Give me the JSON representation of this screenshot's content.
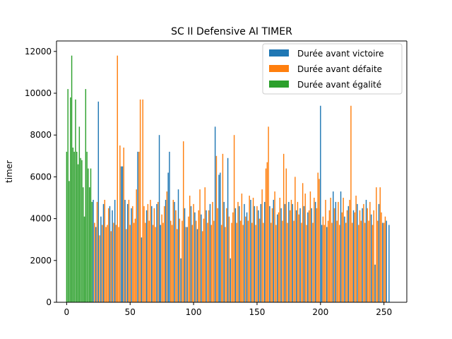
{
  "chart_data": {
    "type": "bar",
    "title": "SC II Defensive AI TIMER",
    "xlabel": "",
    "ylabel": "timer",
    "xlim": [
      -8,
      268
    ],
    "ylim": [
      0,
      12500
    ],
    "xticks": [
      0,
      50,
      100,
      150,
      200,
      250
    ],
    "yticks": [
      0,
      2000,
      4000,
      6000,
      8000,
      10000,
      12000
    ],
    "grid": false,
    "legend_position": "top-right",
    "series": [
      {
        "name": "Durée avant victoire",
        "color": "#1f77b4",
        "points": [
          {
            "x": 21,
            "y": 4900
          },
          {
            "x": 23,
            "y": 3600
          },
          {
            "x": 25,
            "y": 9600
          },
          {
            "x": 27,
            "y": 4100
          },
          {
            "x": 29,
            "y": 4700
          },
          {
            "x": 34,
            "y": 4600
          },
          {
            "x": 36,
            "y": 4400
          },
          {
            "x": 38,
            "y": 4900
          },
          {
            "x": 43,
            "y": 6500
          },
          {
            "x": 44,
            "y": 6500
          },
          {
            "x": 46,
            "y": 4900
          },
          {
            "x": 48,
            "y": 4700
          },
          {
            "x": 51,
            "y": 4500
          },
          {
            "x": 56,
            "y": 7200
          },
          {
            "x": 59,
            "y": 3100
          },
          {
            "x": 63,
            "y": 4400
          },
          {
            "x": 67,
            "y": 4600
          },
          {
            "x": 71,
            "y": 4700
          },
          {
            "x": 73,
            "y": 8000
          },
          {
            "x": 74,
            "y": 3700
          },
          {
            "x": 78,
            "y": 4900
          },
          {
            "x": 80,
            "y": 6200
          },
          {
            "x": 81,
            "y": 7200
          },
          {
            "x": 85,
            "y": 4800
          },
          {
            "x": 88,
            "y": 5400
          },
          {
            "x": 90,
            "y": 2100
          },
          {
            "x": 93,
            "y": 4500
          },
          {
            "x": 95,
            "y": 3600
          },
          {
            "x": 98,
            "y": 4600
          },
          {
            "x": 101,
            "y": 4300
          },
          {
            "x": 103,
            "y": 3500
          },
          {
            "x": 106,
            "y": 4200
          },
          {
            "x": 110,
            "y": 4400
          },
          {
            "x": 113,
            "y": 4700
          },
          {
            "x": 117,
            "y": 8400
          },
          {
            "x": 120,
            "y": 6100
          },
          {
            "x": 121,
            "y": 6200
          },
          {
            "x": 124,
            "y": 4800
          },
          {
            "x": 127,
            "y": 6900
          },
          {
            "x": 129,
            "y": 2100
          },
          {
            "x": 133,
            "y": 4500
          },
          {
            "x": 136,
            "y": 4600
          },
          {
            "x": 140,
            "y": 4700
          },
          {
            "x": 142,
            "y": 4300
          },
          {
            "x": 145,
            "y": 4900
          },
          {
            "x": 148,
            "y": 4600
          },
          {
            "x": 151,
            "y": 4400
          },
          {
            "x": 153,
            "y": 4700
          },
          {
            "x": 156,
            "y": 4800
          },
          {
            "x": 160,
            "y": 4600
          },
          {
            "x": 163,
            "y": 4900
          },
          {
            "x": 166,
            "y": 4200
          },
          {
            "x": 169,
            "y": 4500
          },
          {
            "x": 172,
            "y": 4700
          },
          {
            "x": 175,
            "y": 4800
          },
          {
            "x": 178,
            "y": 4700
          },
          {
            "x": 181,
            "y": 4400
          },
          {
            "x": 184,
            "y": 4500
          },
          {
            "x": 187,
            "y": 4600
          },
          {
            "x": 190,
            "y": 4300
          },
          {
            "x": 193,
            "y": 4500
          },
          {
            "x": 196,
            "y": 4800
          },
          {
            "x": 200,
            "y": 9400
          },
          {
            "x": 201,
            "y": 3700
          },
          {
            "x": 205,
            "y": 3600
          },
          {
            "x": 210,
            "y": 5300
          },
          {
            "x": 212,
            "y": 4800
          },
          {
            "x": 216,
            "y": 5300
          },
          {
            "x": 219,
            "y": 4100
          },
          {
            "x": 222,
            "y": 4600
          },
          {
            "x": 226,
            "y": 4400
          },
          {
            "x": 229,
            "y": 4700
          },
          {
            "x": 233,
            "y": 4500
          },
          {
            "x": 236,
            "y": 4900
          },
          {
            "x": 240,
            "y": 4200
          },
          {
            "x": 243,
            "y": 1800
          },
          {
            "x": 246,
            "y": 4700
          },
          {
            "x": 249,
            "y": 3800
          },
          {
            "x": 252,
            "y": 3900
          },
          {
            "x": 254,
            "y": 3700
          }
        ]
      },
      {
        "name": "Durée avant défaite",
        "color": "#ff7f0e",
        "points": [
          {
            "x": 22,
            "y": 3800
          },
          {
            "x": 24,
            "y": 4800
          },
          {
            "x": 26,
            "y": 3200
          },
          {
            "x": 28,
            "y": 3700
          },
          {
            "x": 30,
            "y": 4900
          },
          {
            "x": 31,
            "y": 3600
          },
          {
            "x": 32,
            "y": 3700
          },
          {
            "x": 33,
            "y": 4500
          },
          {
            "x": 35,
            "y": 3400
          },
          {
            "x": 37,
            "y": 3800
          },
          {
            "x": 39,
            "y": 3700
          },
          {
            "x": 40,
            "y": 11800
          },
          {
            "x": 41,
            "y": 3600
          },
          {
            "x": 42,
            "y": 7500
          },
          {
            "x": 45,
            "y": 7400
          },
          {
            "x": 47,
            "y": 3500
          },
          {
            "x": 49,
            "y": 4900
          },
          {
            "x": 50,
            "y": 3700
          },
          {
            "x": 52,
            "y": 4600
          },
          {
            "x": 53,
            "y": 3800
          },
          {
            "x": 54,
            "y": 4000
          },
          {
            "x": 55,
            "y": 5400
          },
          {
            "x": 57,
            "y": 7200
          },
          {
            "x": 58,
            "y": 9700
          },
          {
            "x": 60,
            "y": 9700
          },
          {
            "x": 61,
            "y": 4600
          },
          {
            "x": 62,
            "y": 3800
          },
          {
            "x": 64,
            "y": 4700
          },
          {
            "x": 65,
            "y": 3900
          },
          {
            "x": 66,
            "y": 4900
          },
          {
            "x": 68,
            "y": 3700
          },
          {
            "x": 69,
            "y": 4500
          },
          {
            "x": 70,
            "y": 3600
          },
          {
            "x": 72,
            "y": 4800
          },
          {
            "x": 75,
            "y": 4200
          },
          {
            "x": 76,
            "y": 3800
          },
          {
            "x": 77,
            "y": 4600
          },
          {
            "x": 79,
            "y": 5300
          },
          {
            "x": 82,
            "y": 3900
          },
          {
            "x": 83,
            "y": 3700
          },
          {
            "x": 84,
            "y": 4900
          },
          {
            "x": 86,
            "y": 4400
          },
          {
            "x": 87,
            "y": 3500
          },
          {
            "x": 89,
            "y": 4000
          },
          {
            "x": 91,
            "y": 3900
          },
          {
            "x": 92,
            "y": 7700
          },
          {
            "x": 94,
            "y": 3600
          },
          {
            "x": 96,
            "y": 4100
          },
          {
            "x": 97,
            "y": 5100
          },
          {
            "x": 99,
            "y": 3700
          },
          {
            "x": 100,
            "y": 4700
          },
          {
            "x": 102,
            "y": 3900
          },
          {
            "x": 104,
            "y": 4400
          },
          {
            "x": 105,
            "y": 5400
          },
          {
            "x": 107,
            "y": 3400
          },
          {
            "x": 108,
            "y": 4000
          },
          {
            "x": 109,
            "y": 5500
          },
          {
            "x": 111,
            "y": 3800
          },
          {
            "x": 112,
            "y": 4400
          },
          {
            "x": 114,
            "y": 3700
          },
          {
            "x": 115,
            "y": 4800
          },
          {
            "x": 116,
            "y": 3900
          },
          {
            "x": 118,
            "y": 7000
          },
          {
            "x": 119,
            "y": 4500
          },
          {
            "x": 122,
            "y": 3700
          },
          {
            "x": 123,
            "y": 7100
          },
          {
            "x": 125,
            "y": 3600
          },
          {
            "x": 126,
            "y": 4500
          },
          {
            "x": 128,
            "y": 4100
          },
          {
            "x": 130,
            "y": 3800
          },
          {
            "x": 131,
            "y": 4300
          },
          {
            "x": 132,
            "y": 8000
          },
          {
            "x": 134,
            "y": 3800
          },
          {
            "x": 135,
            "y": 4800
          },
          {
            "x": 137,
            "y": 3900
          },
          {
            "x": 138,
            "y": 5200
          },
          {
            "x": 139,
            "y": 3700
          },
          {
            "x": 141,
            "y": 4100
          },
          {
            "x": 143,
            "y": 3900
          },
          {
            "x": 144,
            "y": 5100
          },
          {
            "x": 146,
            "y": 3800
          },
          {
            "x": 147,
            "y": 5000
          },
          {
            "x": 149,
            "y": 3700
          },
          {
            "x": 150,
            "y": 4600
          },
          {
            "x": 152,
            "y": 4000
          },
          {
            "x": 154,
            "y": 5400
          },
          {
            "x": 155,
            "y": 3800
          },
          {
            "x": 157,
            "y": 6400
          },
          {
            "x": 158,
            "y": 6700
          },
          {
            "x": 159,
            "y": 8400
          },
          {
            "x": 161,
            "y": 3800
          },
          {
            "x": 162,
            "y": 4500
          },
          {
            "x": 164,
            "y": 5300
          },
          {
            "x": 165,
            "y": 3700
          },
          {
            "x": 167,
            "y": 4300
          },
          {
            "x": 168,
            "y": 5000
          },
          {
            "x": 170,
            "y": 3900
          },
          {
            "x": 171,
            "y": 7100
          },
          {
            "x": 173,
            "y": 6400
          },
          {
            "x": 174,
            "y": 3800
          },
          {
            "x": 176,
            "y": 4400
          },
          {
            "x": 177,
            "y": 4900
          },
          {
            "x": 179,
            "y": 3900
          },
          {
            "x": 180,
            "y": 6000
          },
          {
            "x": 182,
            "y": 4800
          },
          {
            "x": 183,
            "y": 4200
          },
          {
            "x": 185,
            "y": 3800
          },
          {
            "x": 186,
            "y": 5700
          },
          {
            "x": 188,
            "y": 5200
          },
          {
            "x": 189,
            "y": 3700
          },
          {
            "x": 191,
            "y": 4400
          },
          {
            "x": 192,
            "y": 5300
          },
          {
            "x": 194,
            "y": 3800
          },
          {
            "x": 195,
            "y": 5000
          },
          {
            "x": 197,
            "y": 4500
          },
          {
            "x": 198,
            "y": 6200
          },
          {
            "x": 199,
            "y": 5900
          },
          {
            "x": 202,
            "y": 4100
          },
          {
            "x": 203,
            "y": 3700
          },
          {
            "x": 204,
            "y": 4900
          },
          {
            "x": 206,
            "y": 3900
          },
          {
            "x": 207,
            "y": 4400
          },
          {
            "x": 208,
            "y": 5000
          },
          {
            "x": 209,
            "y": 3800
          },
          {
            "x": 211,
            "y": 4500
          },
          {
            "x": 213,
            "y": 3900
          },
          {
            "x": 214,
            "y": 4800
          },
          {
            "x": 215,
            "y": 3700
          },
          {
            "x": 217,
            "y": 4300
          },
          {
            "x": 218,
            "y": 5000
          },
          {
            "x": 220,
            "y": 3800
          },
          {
            "x": 221,
            "y": 4400
          },
          {
            "x": 223,
            "y": 4900
          },
          {
            "x": 224,
            "y": 9400
          },
          {
            "x": 225,
            "y": 3800
          },
          {
            "x": 227,
            "y": 4300
          },
          {
            "x": 228,
            "y": 5100
          },
          {
            "x": 230,
            "y": 3700
          },
          {
            "x": 231,
            "y": 4400
          },
          {
            "x": 232,
            "y": 3900
          },
          {
            "x": 234,
            "y": 4700
          },
          {
            "x": 235,
            "y": 3800
          },
          {
            "x": 237,
            "y": 4500
          },
          {
            "x": 238,
            "y": 3900
          },
          {
            "x": 239,
            "y": 4800
          },
          {
            "x": 241,
            "y": 3700
          },
          {
            "x": 242,
            "y": 4400
          },
          {
            "x": 244,
            "y": 5500
          },
          {
            "x": 245,
            "y": 3900
          },
          {
            "x": 247,
            "y": 5500
          },
          {
            "x": 248,
            "y": 4300
          },
          {
            "x": 250,
            "y": 3800
          },
          {
            "x": 251,
            "y": 4100
          }
        ]
      },
      {
        "name": "Durée avant égalité",
        "color": "#2ca02c",
        "points": [
          {
            "x": 0,
            "y": 7200
          },
          {
            "x": 1,
            "y": 10200
          },
          {
            "x": 2,
            "y": 5800
          },
          {
            "x": 3,
            "y": 9800
          },
          {
            "x": 4,
            "y": 11800
          },
          {
            "x": 5,
            "y": 7400
          },
          {
            "x": 6,
            "y": 7200
          },
          {
            "x": 7,
            "y": 9700
          },
          {
            "x": 8,
            "y": 7200
          },
          {
            "x": 9,
            "y": 6600
          },
          {
            "x": 10,
            "y": 8400
          },
          {
            "x": 11,
            "y": 6900
          },
          {
            "x": 12,
            "y": 6800
          },
          {
            "x": 13,
            "y": 5500
          },
          {
            "x": 14,
            "y": 4100
          },
          {
            "x": 15,
            "y": 10200
          },
          {
            "x": 16,
            "y": 7200
          },
          {
            "x": 17,
            "y": 6400
          },
          {
            "x": 18,
            "y": 5500
          },
          {
            "x": 19,
            "y": 6400
          },
          {
            "x": 20,
            "y": 4800
          }
        ]
      }
    ]
  }
}
